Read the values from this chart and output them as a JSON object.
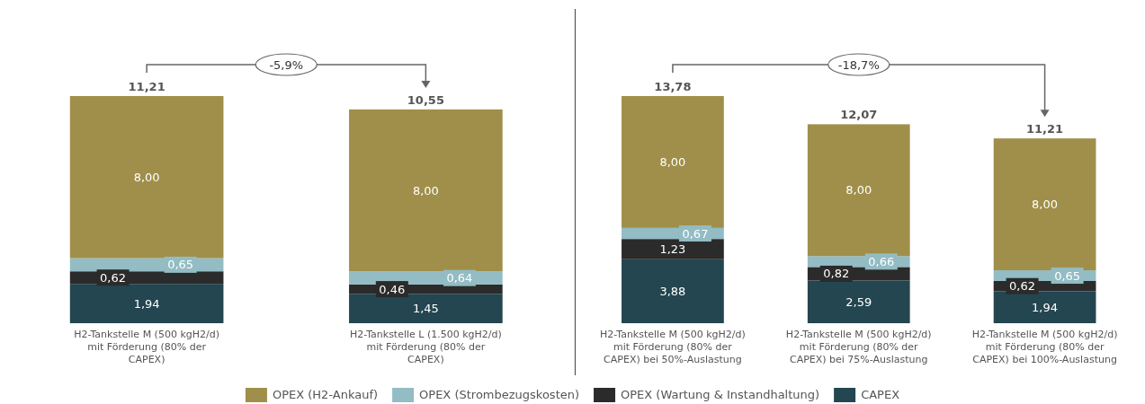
{
  "chart_data": [
    {
      "type": "bar",
      "stacked": true,
      "data_labels": false,
      "legend": "bottom",
      "categories": [
        "H2-Tankstelle M (500 kgH2/d) mit Förderung (80% der CAPEX)",
        "H2-Tankstelle L (1.500 kgH2/d) mit Förderung (80% der CAPEX)"
      ],
      "series": [
        {
          "name": "CAPEX",
          "color": "#234650",
          "values": [
            1.94,
            1.45
          ],
          "value_labels": [
            "1,94",
            "1,45"
          ]
        },
        {
          "name": "OPEX (Wartung & Instandhaltung)",
          "color": "#2b2b2b",
          "values": [
            0.62,
            0.46
          ],
          "value_labels": [
            "0,62",
            "0,46"
          ]
        },
        {
          "name": "OPEX (Strombezugskosten)",
          "color": "#93bcc4",
          "values": [
            0.65,
            0.64
          ],
          "value_labels": [
            "0,65",
            "0,64"
          ]
        },
        {
          "name": "OPEX (H2-Ankauf)",
          "color": "#a08f4a",
          "values": [
            8.0,
            8.0
          ],
          "value_labels": [
            "8,00",
            "8,00"
          ]
        }
      ],
      "totals": [
        "11,21",
        "10,55"
      ],
      "annotations": [
        "-5,9%"
      ]
    },
    {
      "type": "bar",
      "stacked": true,
      "data_labels": false,
      "categories": [
        "H2-Tankstelle M (500 kgH2/d) mit Förderung (80% der CAPEX) bei 50%-Auslastung",
        "H2-Tankstelle M (500 kgH2/d) mit Förderung (80% der CAPEX) bei 75%-Auslastung",
        "H2-Tankstelle M (500 kgH2/d) mit Förderung (80% der CAPEX) bei 100%-Auslastung"
      ],
      "series": [
        {
          "color": "#234650",
          "values": [
            3.88,
            2.59,
            1.94
          ],
          "value_labels": [
            "3,88",
            "2,59",
            "1,94"
          ]
        },
        {
          "color": "#2b2b2b",
          "values": [
            1.23,
            0.82,
            0.62
          ],
          "value_labels": [
            "1,23",
            "0,82",
            "0,62"
          ]
        },
        {
          "color": "#93bcc4",
          "values": [
            0.67,
            0.66,
            0.65
          ],
          "value_labels": [
            "0,67",
            "0,66",
            "0,65"
          ]
        },
        {
          "color": "#a08f4a",
          "values": [
            8.0,
            8.0,
            8.0
          ],
          "value_labels": [
            "8,00",
            "8,00",
            "8,00"
          ]
        }
      ],
      "totals": [
        "13,78",
        "12,07",
        "11,21"
      ],
      "annotations": [
        "-18,7%"
      ]
    }
  ]
}
